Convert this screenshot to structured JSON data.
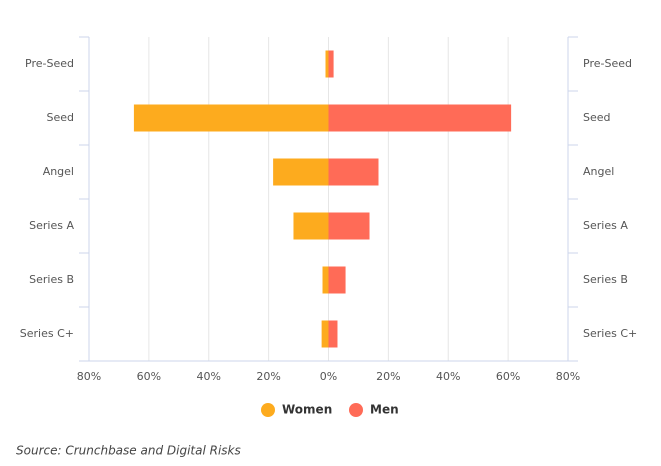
{
  "chart_data": {
    "type": "bar",
    "orientation": "horizontal",
    "categories": [
      "Pre-Seed",
      "Seed",
      "Angel",
      "Series A",
      "Series B",
      "Series C+"
    ],
    "series": [
      {
        "name": "Women",
        "color": "#fdab1e",
        "values": [
          -1,
          -65,
          -18.5,
          -11.7,
          -2,
          -2.3
        ]
      },
      {
        "name": "Men",
        "color": "#ff6b57",
        "values": [
          1.7,
          61,
          16.7,
          13.7,
          5.7,
          3
        ]
      }
    ],
    "xlim": [
      -80,
      80
    ],
    "xticks": [
      {
        "value": -80,
        "label": "80%"
      },
      {
        "value": -60,
        "label": "60%"
      },
      {
        "value": -40,
        "label": "40%"
      },
      {
        "value": -20,
        "label": "20%"
      },
      {
        "value": 0,
        "label": "0%"
      },
      {
        "value": 20,
        "label": "20%"
      },
      {
        "value": 40,
        "label": "40%"
      },
      {
        "value": 60,
        "label": "60%"
      },
      {
        "value": 80,
        "label": "80%"
      }
    ],
    "grid": true,
    "legend": "bottom",
    "source": "Source: Crunchbase and Digital Risks"
  }
}
